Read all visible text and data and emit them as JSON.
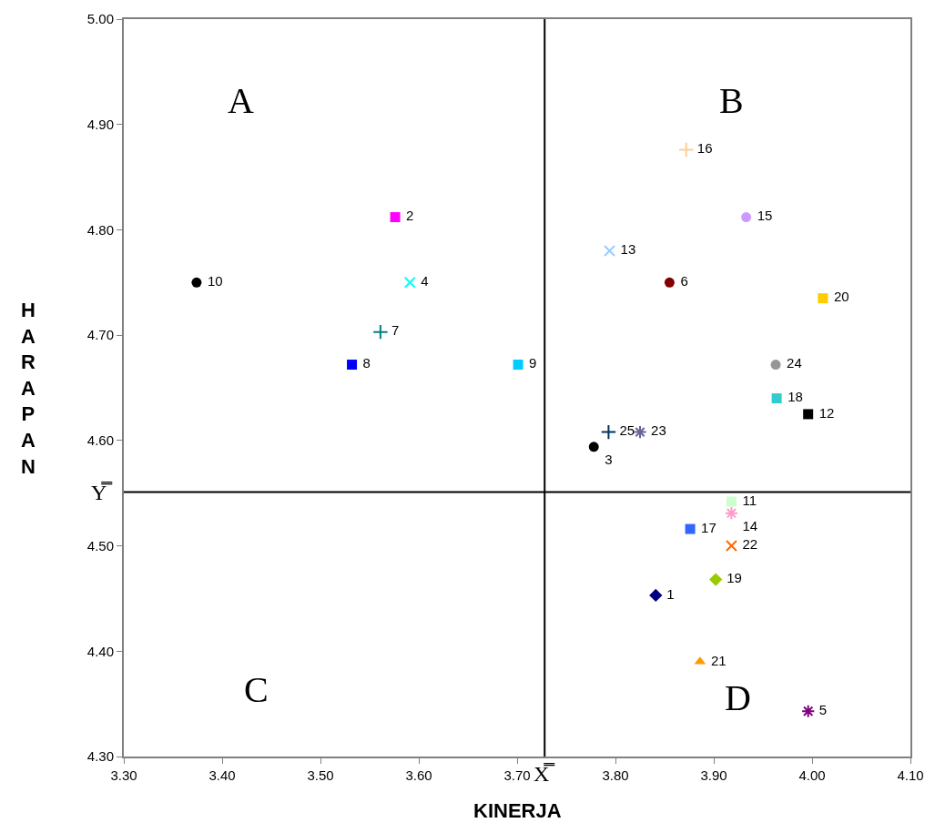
{
  "chart_data": {
    "type": "scatter",
    "xlabel": "KINERJA",
    "ylabel": "HARAPAN",
    "xlim": [
      3.3,
      4.1
    ],
    "xticks": [
      {
        "value": 3.3,
        "label": "3.30"
      },
      {
        "value": 3.4,
        "label": "3.40"
      },
      {
        "value": 3.5,
        "label": "3.50"
      },
      {
        "value": 3.6,
        "label": "3.60"
      },
      {
        "value": 3.7,
        "label": "3.70"
      },
      {
        "value": 3.8,
        "label": "3.80"
      },
      {
        "value": 3.9,
        "label": "3.90"
      },
      {
        "value": 4.0,
        "label": "4.00"
      },
      {
        "value": 4.1,
        "label": "4.10"
      }
    ],
    "ylim": [
      4.3,
      5.0
    ],
    "yticks": [
      {
        "value": 4.3,
        "label": "4.30"
      },
      {
        "value": 4.4,
        "label": "4.40"
      },
      {
        "value": 4.5,
        "label": "4.50"
      },
      {
        "value": 4.6,
        "label": "4.60"
      },
      {
        "value": 4.7,
        "label": "4.70"
      },
      {
        "value": 4.8,
        "label": "4.80"
      },
      {
        "value": 4.9,
        "label": "4.90"
      },
      {
        "value": 5.0,
        "label": "5.00"
      }
    ],
    "grid": false,
    "legend": false,
    "annotations": [
      "A",
      "B",
      "C",
      "D"
    ],
    "ref_lines": [
      {
        "axis": "x",
        "value": 3.728,
        "label": "X̿",
        "color": "#000000"
      },
      {
        "axis": "y",
        "value": 4.551,
        "label": "Y̿",
        "color": "#000000"
      }
    ],
    "series": [
      {
        "name": "1",
        "x": [
          3.841
        ],
        "values": [
          4.453
        ],
        "color": "#000080",
        "marker": "diamond"
      },
      {
        "name": "2",
        "x": [
          3.576
        ],
        "values": [
          4.812
        ],
        "color": "#ff00ff",
        "marker": "square"
      },
      {
        "name": "3",
        "x": [
          3.778
        ],
        "values": [
          4.594
        ],
        "color": "#000000",
        "marker": "circle"
      },
      {
        "name": "4",
        "x": [
          3.591
        ],
        "values": [
          4.75
        ],
        "color": "#00ffff",
        "marker": "x"
      },
      {
        "name": "5",
        "x": [
          3.996
        ],
        "values": [
          4.343
        ],
        "color": "#800080",
        "marker": "cross"
      },
      {
        "name": "6",
        "x": [
          3.855
        ],
        "values": [
          4.75
        ],
        "color": "#800000",
        "marker": "circle"
      },
      {
        "name": "7",
        "x": [
          3.561
        ],
        "values": [
          4.703
        ],
        "color": "#008080",
        "marker": "plus"
      },
      {
        "name": "8",
        "x": [
          3.532
        ],
        "values": [
          4.672
        ],
        "color": "#0000ff",
        "marker": "square"
      },
      {
        "name": "9",
        "x": [
          3.701
        ],
        "values": [
          4.672
        ],
        "color": "#00ccff",
        "marker": "square"
      },
      {
        "name": "10",
        "x": [
          3.374
        ],
        "values": [
          4.75
        ],
        "color": "#000000",
        "marker": "circle"
      },
      {
        "name": "11",
        "x": [
          3.918
        ],
        "values": [
          4.542
        ],
        "color": "#ccffcc",
        "marker": "square"
      },
      {
        "name": "12",
        "x": [
          3.996
        ],
        "values": [
          4.625
        ],
        "color": "#000000",
        "marker": "square"
      },
      {
        "name": "13",
        "x": [
          3.794
        ],
        "values": [
          4.78
        ],
        "color": "#99ccff",
        "marker": "x"
      },
      {
        "name": "14",
        "x": [
          3.918
        ],
        "values": [
          4.531
        ],
        "color": "#ff99cc",
        "marker": "cross"
      },
      {
        "name": "15",
        "x": [
          3.933
        ],
        "values": [
          4.812
        ],
        "color": "#cc99ff",
        "marker": "circle"
      },
      {
        "name": "16",
        "x": [
          3.872
        ],
        "values": [
          4.876
        ],
        "color": "#ffcc99",
        "marker": "plus"
      },
      {
        "name": "17",
        "x": [
          3.876
        ],
        "values": [
          4.516
        ],
        "color": "#3366ff",
        "marker": "square"
      },
      {
        "name": "18",
        "x": [
          3.964
        ],
        "values": [
          4.64
        ],
        "color": "#33cccc",
        "marker": "square"
      },
      {
        "name": "19",
        "x": [
          3.902
        ],
        "values": [
          4.468
        ],
        "color": "#99cc00",
        "marker": "diamond"
      },
      {
        "name": "20",
        "x": [
          4.011
        ],
        "values": [
          4.735
        ],
        "color": "#ffcc00",
        "marker": "square"
      },
      {
        "name": "21",
        "x": [
          3.886
        ],
        "values": [
          4.39
        ],
        "color": "#ff9900",
        "marker": "triangle"
      },
      {
        "name": "22",
        "x": [
          3.918
        ],
        "values": [
          4.5
        ],
        "color": "#ff6600",
        "marker": "x"
      },
      {
        "name": "23",
        "x": [
          3.825
        ],
        "values": [
          4.608
        ],
        "color": "#666699",
        "marker": "cross"
      },
      {
        "name": "24",
        "x": [
          3.963
        ],
        "values": [
          4.672
        ],
        "color": "#969696",
        "marker": "circle"
      },
      {
        "name": "25",
        "x": [
          3.793
        ],
        "values": [
          4.608
        ],
        "color": "#003366",
        "marker": "plus"
      }
    ]
  }
}
